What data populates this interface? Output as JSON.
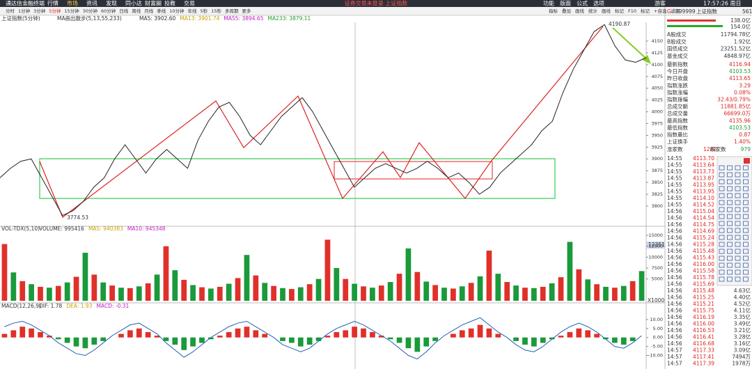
{
  "menu": {
    "app": "通达信金融终端",
    "items": [
      "行情",
      "市场",
      "资讯",
      "发现",
      "同小达",
      "财富圈",
      "投教",
      "交易"
    ],
    "notice": "证券交易未登录 上证指数",
    "right": [
      "功能",
      "版面",
      "公式",
      "选项"
    ],
    "user": "游客",
    "clock": "17:57:26 周日"
  },
  "toolbar": {
    "periods": [
      "分时",
      "1分钟",
      "3分钟",
      "5分钟",
      "15分钟",
      "30分钟",
      "60分钟",
      "日线",
      "周线",
      "月线",
      "季线",
      "10分钟",
      "年线",
      "5秒",
      "15秒",
      "多周期",
      "更多"
    ],
    "tools": [
      "指标",
      "叠加",
      "画线",
      "统计",
      "画线",
      "标记",
      "F10",
      "标记",
      "+自选",
      "返回"
    ]
  },
  "chart_data": [
    {
      "type": "line",
      "title": "上证指数(5分钟)",
      "indicator": "MA画出散步(5,13,55,233)",
      "indicators": [
        "MA5: 3902.60",
        "MA13: 3901.74",
        "MA55: 3894.65",
        "MA233: 3879.11"
      ],
      "annotations": [
        "4190.87",
        "3774.53"
      ],
      "color": "#222222",
      "values": [
        3860,
        3880,
        3895,
        3900,
        3860,
        3820,
        3780,
        3790,
        3810,
        3840,
        3860,
        3900,
        3930,
        3900,
        3870,
        3900,
        3920,
        3900,
        3880,
        3940,
        3980,
        4010,
        4020,
        3990,
        3950,
        3930,
        3960,
        3990,
        4010,
        4030,
        4000,
        3960,
        3920,
        3880,
        3840,
        3860,
        3880,
        3890,
        3880,
        3870,
        3880,
        3895,
        3880,
        3860,
        3870,
        3850,
        3825,
        3840,
        3870,
        3890,
        3910,
        3930,
        3960,
        3980,
        4040,
        4090,
        4130,
        4170,
        4185,
        4140,
        4110,
        4105,
        4115
      ],
      "ylim": [
        3757,
        4190
      ],
      "yticks": [
        3800,
        3825,
        3850,
        3875,
        3900,
        3925,
        3950,
        3975,
        4000,
        4025,
        4050,
        4075,
        4100,
        4125,
        4150
      ]
    },
    {
      "type": "bar",
      "title": "VOL-TDX(5,10)",
      "indicators": [
        "VOLUME: 995416",
        "MA5: 940383",
        "MA10: 945348"
      ],
      "colors": [
        "#e0302a",
        "#1a9a3a"
      ],
      "current_label": "12351",
      "unit_label": "X1000",
      "values": [
        13000,
        6500,
        4500,
        3800,
        3200,
        3000,
        3400,
        4200,
        5500,
        11000,
        6000,
        4200,
        3500,
        3000,
        2900,
        3300,
        4000,
        6000,
        12500,
        7000,
        4800,
        3600,
        3100,
        2800,
        3200,
        3900,
        5200,
        10500,
        5800,
        4100,
        3400,
        2900,
        2700,
        3100,
        3800,
        5000,
        14000,
        7500,
        5000,
        3900,
        3300,
        3000,
        3500,
        4300,
        6200,
        12000,
        6600,
        4400,
        3600,
        3000,
        2800,
        3300,
        4100,
        5600,
        11500,
        6200,
        4300,
        3500,
        3000,
        2900,
        3200,
        4000,
        5400,
        13500,
        7200,
        4900,
        3800,
        3200,
        3000,
        3400,
        4500,
        6800
      ],
      "ylim": [
        0,
        15000
      ],
      "yticks": [
        5000,
        7500,
        10000,
        12500,
        15000
      ]
    },
    {
      "type": "bar",
      "title": "MACD(12,26,9)",
      "indicators": [
        "DIF: 1.78",
        "DEA: 1.93",
        "MACD: -0.31"
      ],
      "colors": [
        "#e0302a",
        "#1a9a3a"
      ],
      "values": [
        2,
        4,
        6,
        5,
        3,
        1,
        -1,
        -3,
        -5,
        -6,
        -4,
        -2,
        0,
        2,
        4,
        5,
        3,
        1,
        -2,
        -4,
        -7,
        -5,
        -3,
        -1,
        1,
        3,
        5,
        6,
        4,
        2,
        0,
        -2,
        -3,
        -5,
        -4,
        -2,
        1,
        3,
        4,
        6,
        5,
        3,
        1,
        -1,
        -3,
        -6,
        -8,
        -5,
        -2,
        0,
        2,
        4,
        5,
        7,
        5,
        2,
        0,
        -2,
        -4,
        -5,
        -3,
        -1,
        1,
        3,
        5,
        4,
        2,
        -1,
        -3,
        -4,
        -2,
        0
      ],
      "line": {
        "name": "DIF",
        "color": "#2060b0",
        "values": [
          6,
          8,
          9,
          7,
          4,
          1,
          -3,
          -6,
          -9,
          -10,
          -7,
          -3,
          1,
          4,
          7,
          8,
          5,
          2,
          -3,
          -7,
          -11,
          -8,
          -4,
          0,
          3,
          6,
          8,
          9,
          6,
          3,
          0,
          -4,
          -6,
          -8,
          -6,
          -2,
          2,
          5,
          7,
          9,
          7,
          4,
          1,
          -2,
          -6,
          -10,
          -12,
          -8,
          -3,
          1,
          4,
          7,
          9,
          11,
          7,
          3,
          0,
          -4,
          -7,
          -8,
          -5,
          -1,
          3,
          6,
          8,
          6,
          3,
          -1,
          -5,
          -6,
          -3,
          1
        ]
      },
      "ylim": [
        -16,
        15
      ],
      "yticks": [
        {
          "value": 10,
          "label": "10.00"
        },
        {
          "value": 5,
          "label": "5.00"
        },
        {
          "value": 0,
          "label": "0.00"
        },
        {
          "value": -5,
          "label": "-5.00"
        },
        {
          "value": -10,
          "label": "-10.00"
        }
      ]
    }
  ],
  "quote_panel": {
    "flag": "G",
    "code": "999999",
    "name": "上证指数",
    "num": "561",
    "bars": [
      "138.0亿",
      "154.0亿"
    ],
    "summary": [
      [
        "A股成交",
        "11794.78亿"
      ],
      [
        "B股成交",
        "1.92亿"
      ],
      [
        "国债成交",
        "23251.52亿"
      ],
      [
        "基金成交",
        "4848.97亿"
      ]
    ],
    "stats": [
      [
        "最新指数",
        "4116.94"
      ],
      [
        "今日开盘",
        "4103.53"
      ],
      [
        "昨日收盘",
        "4113.65"
      ],
      [
        "指数涨跌",
        "3.29"
      ],
      [
        "指数涨幅",
        "0.08%"
      ],
      [
        "指数振幅",
        "32.43/0.79%"
      ],
      [
        "总成交额",
        "11881.85亿"
      ],
      [
        "总成交量",
        "66699.0万"
      ],
      [
        "最高指数",
        "4135.96"
      ],
      [
        "最低指数",
        "4103.53"
      ],
      [
        "指数量比",
        "0.87"
      ],
      [
        "上证换手",
        "1.40%"
      ]
    ],
    "breadth": [
      "涨家数",
      "1282",
      "跌家数",
      "979"
    ],
    "ticks": [
      [
        "14:55",
        "4113.70"
      ],
      [
        "14:55",
        "4113.64"
      ],
      [
        "14:55",
        "4113.73"
      ],
      [
        "14:55",
        "4113.87"
      ],
      [
        "14:55",
        "4113.95"
      ],
      [
        "14:55",
        "4113.95"
      ],
      [
        "14:55",
        "4114.10"
      ],
      [
        "14:55",
        "4114.52"
      ],
      [
        "14:56",
        "4115.04"
      ],
      [
        "14:56",
        "4114.54"
      ],
      [
        "14:56",
        "4114.75"
      ],
      [
        "14:56",
        "4114.69"
      ],
      [
        "14:56",
        "4115.24"
      ],
      [
        "14:56",
        "4115.28"
      ],
      [
        "14:56",
        "4115.48"
      ],
      [
        "14:56",
        "4115.43"
      ],
      [
        "14:56",
        "4116.00"
      ],
      [
        "14:56",
        "4115.58"
      ],
      [
        "14:56",
        "4115.78"
      ],
      [
        "14:56",
        "4115.69"
      ],
      [
        "14:56",
        "4115.48",
        "4.63亿"
      ],
      [
        "14:56",
        "4115.25",
        "4.40亿"
      ],
      [
        "14:56",
        "4115.21",
        "4.52亿"
      ],
      [
        "14:56",
        "4115.75",
        "4.11亿"
      ],
      [
        "14:56",
        "4116.19",
        "3.35亿"
      ],
      [
        "14:56",
        "4116.00",
        "3.49亿"
      ],
      [
        "14:56",
        "4116.53",
        "3.21亿"
      ],
      [
        "14:56",
        "4116.41",
        "3.28亿"
      ],
      [
        "14:56",
        "4116.68",
        "3.16亿"
      ],
      [
        "14:57",
        "4117.33",
        "3.09亿"
      ],
      [
        "14:57",
        "4117.41",
        "7494万"
      ],
      [
        "14:57",
        "4117.39",
        "1978万"
      ]
    ]
  }
}
